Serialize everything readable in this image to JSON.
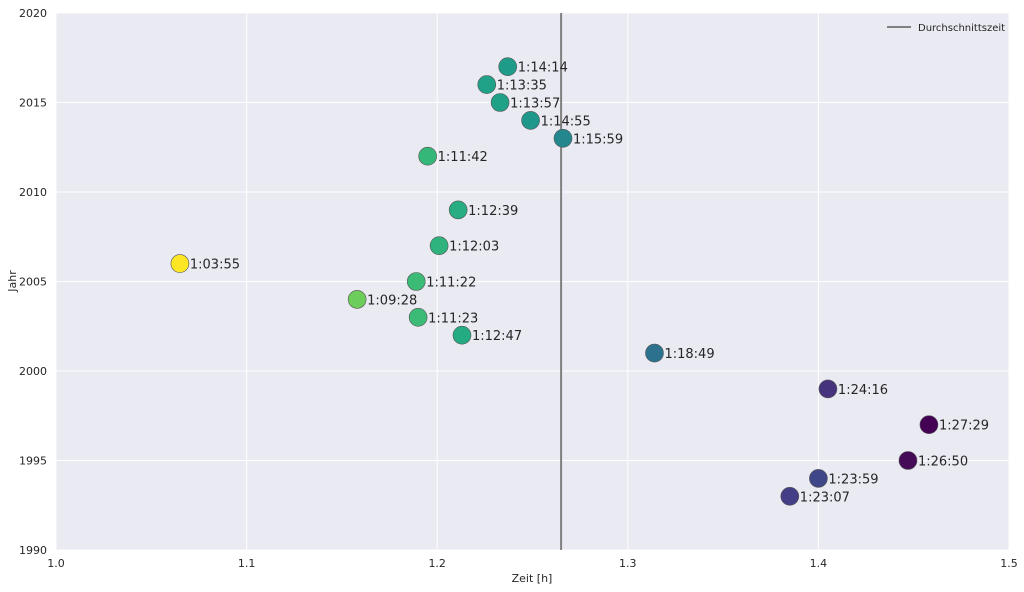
{
  "chart_data": {
    "type": "scatter",
    "xlabel": "Zeit [h]",
    "ylabel": "Jahr",
    "xlim": [
      1.0,
      1.5
    ],
    "ylim": [
      1990,
      2020
    ],
    "x_ticks": [
      "1.0",
      "1.1",
      "1.2",
      "1.3",
      "1.4",
      "1.5"
    ],
    "y_ticks": [
      "1990",
      "1995",
      "2000",
      "2005",
      "2010",
      "2015",
      "2020"
    ],
    "grid": true,
    "legend_position": "top-right",
    "background_color": "#EAEAF2",
    "colormap": "viridis",
    "reference_line": {
      "label": "Durchschnittszeit",
      "x": 1.265,
      "color": "#808080"
    },
    "points": [
      {
        "year": 1993,
        "x": 1.385,
        "label": "1:23:07",
        "color": "#433E85"
      },
      {
        "year": 1994,
        "x": 1.4,
        "label": "1:23:59",
        "color": "#3F4788"
      },
      {
        "year": 1995,
        "x": 1.447,
        "label": "1:26:50",
        "color": "#450B57"
      },
      {
        "year": 1997,
        "x": 1.458,
        "label": "1:27:29",
        "color": "#440154"
      },
      {
        "year": 1999,
        "x": 1.405,
        "label": "1:24:16",
        "color": "#46337E"
      },
      {
        "year": 2001,
        "x": 1.314,
        "label": "1:18:49",
        "color": "#2C728E"
      },
      {
        "year": 2002,
        "x": 1.213,
        "label": "1:12:47",
        "color": "#25AB82"
      },
      {
        "year": 2003,
        "x": 1.19,
        "label": "1:11:23",
        "color": "#3BBB75"
      },
      {
        "year": 2004,
        "x": 1.158,
        "label": "1:09:28",
        "color": "#6CCD5A"
      },
      {
        "year": 2005,
        "x": 1.189,
        "label": "1:11:22",
        "color": "#3BBB75"
      },
      {
        "year": 2006,
        "x": 1.065,
        "label": "1:03:55",
        "color": "#FDE725"
      },
      {
        "year": 2007,
        "x": 1.201,
        "label": "1:12:03",
        "color": "#2EB37C"
      },
      {
        "year": 2009,
        "x": 1.211,
        "label": "1:12:39",
        "color": "#27AD81"
      },
      {
        "year": 2012,
        "x": 1.195,
        "label": "1:11:42",
        "color": "#35B779"
      },
      {
        "year": 2013,
        "x": 1.266,
        "label": "1:15:59",
        "color": "#24878E"
      },
      {
        "year": 2014,
        "x": 1.249,
        "label": "1:14:55",
        "color": "#1F978B"
      },
      {
        "year": 2015,
        "x": 1.233,
        "label": "1:13:57",
        "color": "#1FA187"
      },
      {
        "year": 2016,
        "x": 1.226,
        "label": "1:13:35",
        "color": "#1FA287"
      },
      {
        "year": 2017,
        "x": 1.237,
        "label": "1:14:14",
        "color": "#1E9C89"
      }
    ]
  }
}
